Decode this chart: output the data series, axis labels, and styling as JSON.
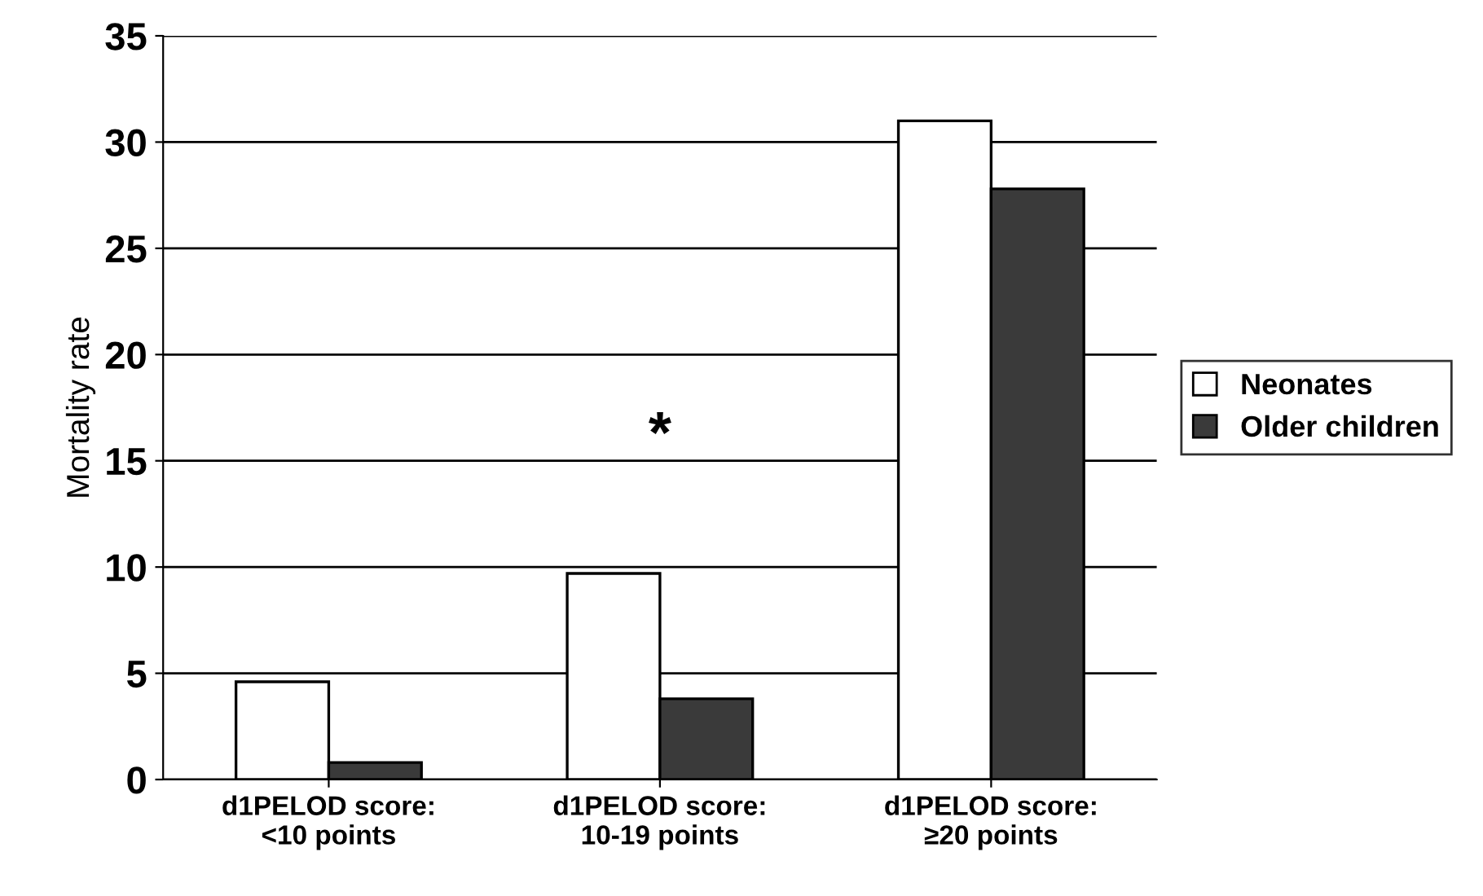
{
  "chart_data": {
    "type": "bar",
    "ylabel": "Mortality rate",
    "categories": [
      "d1PELOD score:\n<10 points",
      "d1PELOD score:\n10-19 points",
      "d1PELOD score:\n≥20 points"
    ],
    "series": [
      {
        "name": "Neonates",
        "color": "#ffffff",
        "values": [
          4.6,
          9.7,
          31
        ]
      },
      {
        "name": "Older children",
        "color": "#3a3a3a",
        "values": [
          0.8,
          3.8,
          27.8
        ]
      }
    ],
    "ylim": [
      0,
      35
    ],
    "yticks": [
      0,
      5,
      10,
      15,
      20,
      25,
      30,
      35
    ],
    "grid": "y",
    "legend": "right",
    "annotations": [
      "*"
    ]
  }
}
